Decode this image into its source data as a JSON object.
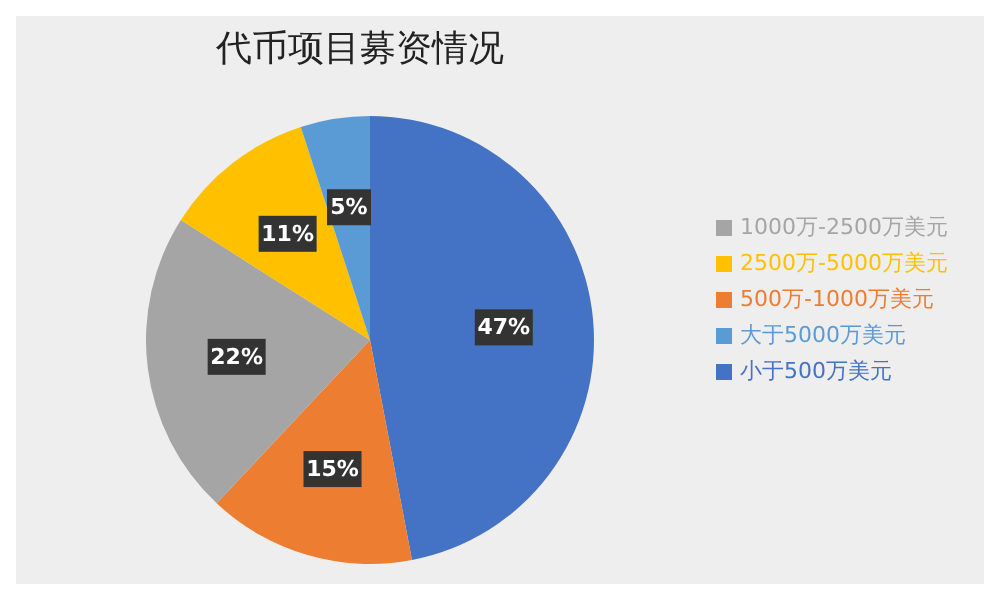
{
  "chart_data": {
    "type": "pie",
    "title": "代币项目募资情况",
    "categories": [
      "小于500万美元",
      "500万-1000万美元",
      "1000万-2500万美元",
      "2500万-5000万美元",
      "大于5000万美元"
    ],
    "values": [
      47,
      15,
      22,
      11,
      5
    ],
    "colors": [
      "#4472c4",
      "#ed7d31",
      "#a5a5a5",
      "#ffc000",
      "#5b9bd5"
    ],
    "value_labels": [
      "47%",
      "15%",
      "22%",
      "11%",
      "5%"
    ],
    "legend": "right"
  }
}
